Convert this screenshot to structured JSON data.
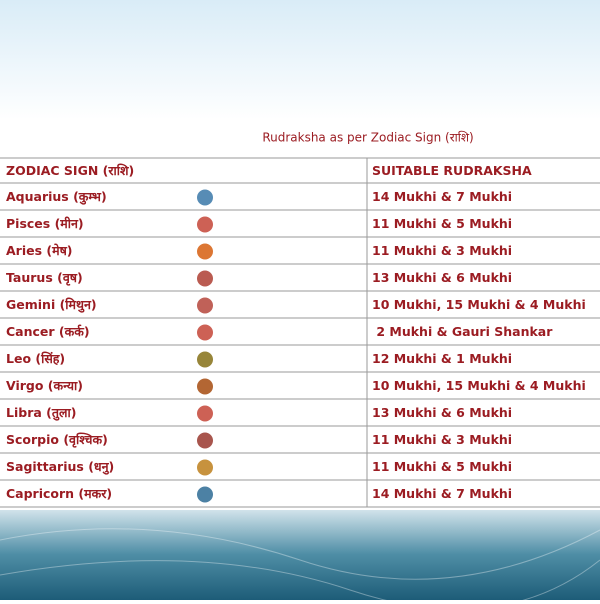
{
  "header": {
    "title": "Rudraksha as per Zodiac Sign (राशि)"
  },
  "table": {
    "columns": [
      "ZODIAC SIGN (राशि)",
      "SUITABLE RUDRAKSHA"
    ],
    "rows": [
      [
        "Aquarius (कुम्भ)",
        "14 Mukhi & 7 Mukhi"
      ],
      [
        "Pisces (मीन)",
        "11 Mukhi & 5 Mukhi"
      ],
      [
        "Aries (मेष)",
        "11 Mukhi & 3 Mukhi"
      ],
      [
        "Taurus (वृष)",
        "13 Mukhi & 6 Mukhi"
      ],
      [
        "Gemini (मिथुन)",
        "10 Mukhi, 15 Mukhi & 4 Mukhi"
      ],
      [
        "Cancer (कर्क)",
        " 2 Mukhi & Gauri Shankar"
      ],
      [
        "Leo (सिंह)",
        "12 Mukhi & 1 Mukhi"
      ],
      [
        "Virgo (कन्या)",
        "10 Mukhi, 15 Mukhi & 4 Mukhi"
      ],
      [
        "Libra (तुला)",
        "13 Mukhi & 6 Mukhi"
      ],
      [
        "Scorpio (वृश्चिक)",
        "11 Mukhi & 3 Mukhi"
      ],
      [
        "Sagittarius (धनु)",
        "11 Mukhi & 5 Mukhi"
      ],
      [
        "Capricorn (मकर)",
        "14 Mukhi & 7 Mukhi"
      ]
    ]
  }
}
